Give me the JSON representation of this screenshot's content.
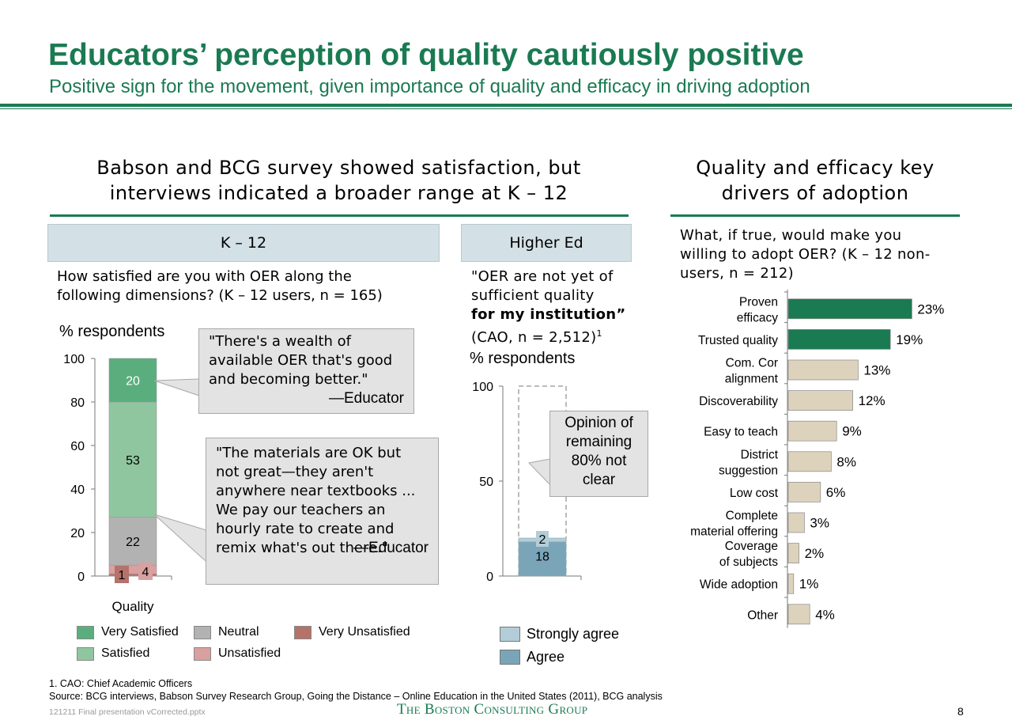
{
  "header": {
    "title": "Educators’ perception of quality cautiously positive",
    "subtitle": "Positive sign for the movement, given importance of quality and efficacy in driving adoption"
  },
  "left_section": {
    "heading_line1": "Babson and BCG survey showed satisfaction, but",
    "heading_line2": "interviews indicated a broader range at K – 12"
  },
  "right_section": {
    "heading_line1": "Quality and efficacy key",
    "heading_line2": "drivers of adoption",
    "question_line1": "What, if true, would make you",
    "question_line2": "willing to adopt OER? (K – 12 non-",
    "question_line3": "users, n = 212)"
  },
  "k12": {
    "tab_label": "K – 12",
    "question_line1": "How satisfied are you with OER along the",
    "question_line2": "following dimensions? (K – 12 users, n = 165)",
    "y_axis_label": "% respondents",
    "quote1": {
      "lines": [
        "\"There's a wealth of",
        "available OER that's good",
        "and becoming better.\""
      ],
      "attribution": "—Educator"
    },
    "quote2": {
      "lines": [
        "\"The materials are OK but",
        "not great—they aren't",
        "anywhere near textbooks ...",
        "We pay our teachers an",
        "hourly rate to create and",
        "remix what's out there.\""
      ],
      "attribution": "—Educator"
    },
    "legend": [
      {
        "label": "Very Satisfied",
        "color": "#5aae7e"
      },
      {
        "label": "Satisfied",
        "color": "#8fc6a0"
      },
      {
        "label": "Neutral",
        "color": "#b2b2b2"
      },
      {
        "label": "Unsatisfied",
        "color": "#d9a0a0"
      },
      {
        "label": "Very Unsatisfied",
        "color": "#b5726b"
      }
    ]
  },
  "higher_ed": {
    "tab_label": "Higher Ed",
    "quote_line1": "\"OER are not yet of",
    "quote_line2": "sufficient quality",
    "quote_line3_bold": "for my institution”",
    "quote_line4": "(CAO, n = 2,512)",
    "quote_footnote_marker": "1",
    "y_axis_label": "% respondents",
    "callout_lines": [
      "Opinion of",
      "remaining",
      "80% not",
      "clear"
    ],
    "legend": [
      {
        "label": "Strongly agree",
        "color": "#b3cdd8"
      },
      {
        "label": "Agree",
        "color": "#7aa5b8"
      }
    ]
  },
  "chart_data": [
    {
      "type": "bar",
      "stacked": true,
      "categories": [
        "Quality"
      ],
      "ylim": [
        0,
        100
      ],
      "yticks": [
        0,
        20,
        40,
        60,
        80,
        100
      ],
      "series": [
        {
          "name": "Very Unsatisfied",
          "values": [
            1
          ],
          "color": "#b5726b"
        },
        {
          "name": "Unsatisfied",
          "values": [
            4
          ],
          "color": "#d9a0a0"
        },
        {
          "name": "Neutral",
          "values": [
            22
          ],
          "color": "#b2b2b2"
        },
        {
          "name": "Satisfied",
          "values": [
            53
          ],
          "color": "#8fc6a0"
        },
        {
          "name": "Very Satisfied",
          "values": [
            20
          ],
          "color": "#5aae7e"
        }
      ],
      "ylabel": "% respondents",
      "legend_position": "bottom"
    },
    {
      "type": "bar",
      "stacked": true,
      "categories": [
        ""
      ],
      "ylim": [
        0,
        100
      ],
      "yticks": [
        0,
        50,
        100
      ],
      "series": [
        {
          "name": "Agree",
          "values": [
            18
          ],
          "color": "#7aa5b8"
        },
        {
          "name": "Strongly agree",
          "values": [
            2
          ],
          "color": "#b3cdd8"
        }
      ],
      "ylabel": "% respondents",
      "legend_position": "bottom"
    },
    {
      "type": "bar",
      "orientation": "horizontal",
      "categories": [
        "Proven efficacy",
        "Trusted quality",
        "Com. Cor alignment",
        "Discoverability",
        "Easy to teach",
        "District suggestion",
        "Low cost",
        "Complete material offering",
        "Coverage of subjects",
        "Wide adoption",
        "Other"
      ],
      "category_lines": [
        [
          "Proven",
          "efficacy"
        ],
        [
          "Trusted quality"
        ],
        [
          "Com. Cor",
          "alignment"
        ],
        [
          "Discoverability"
        ],
        [
          "Easy to teach"
        ],
        [
          "District",
          "suggestion"
        ],
        [
          "Low cost"
        ],
        [
          "Complete",
          "material offering"
        ],
        [
          "Coverage",
          "of subjects"
        ],
        [
          "Wide adoption"
        ],
        [
          "Other"
        ]
      ],
      "values": [
        23,
        19,
        13,
        12,
        9,
        8,
        6,
        3,
        2,
        1,
        4
      ],
      "labels": [
        "23%",
        "19%",
        "13%",
        "12%",
        "9%",
        "8%",
        "6%",
        "3%",
        "2%",
        "1%",
        "4%"
      ],
      "highlight_color": "#1a7a52",
      "base_color": "#ddd3bd"
    }
  ],
  "footer": {
    "footnote": "1. CAO: Chief Academic Officers",
    "source": "Source: BCG interviews, Babson Survey Research Group, Going the Distance – Online Education in the United States (2011), BCG analysis",
    "filename": "121211 Final presentation vCorrected.pptx",
    "logo": "The Boston Consulting Group",
    "page_number": "8"
  }
}
